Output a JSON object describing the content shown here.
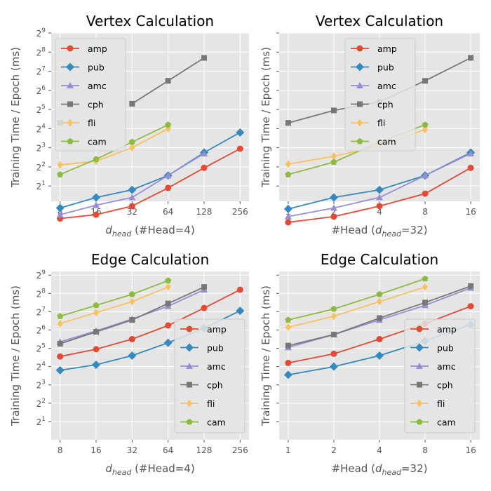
{
  "figure": {
    "background": "#ffffff",
    "panel_background": "#e5e5e5",
    "grid_color": "#ffffff",
    "text_color": "#555555"
  },
  "series_styles": {
    "amp": {
      "color": "#e24a33",
      "marker": "circle"
    },
    "pub": {
      "color": "#348abd",
      "marker": "diamond"
    },
    "amc": {
      "color": "#988ed5",
      "marker": "triangle"
    },
    "cph": {
      "color": "#777777",
      "marker": "square"
    },
    "fli": {
      "color": "#fbc15e",
      "marker": "thin-diamond"
    },
    "cam": {
      "color": "#8eba42",
      "marker": "pentagon"
    }
  },
  "chart_data": [
    {
      "type": "line",
      "title": "Vertex Calculation",
      "xlabel": "d_head (#Head=4)",
      "ylabel": "Training Time / Epoch (ms)",
      "x": [
        "8",
        "16",
        "32",
        "64",
        "128",
        "256"
      ],
      "yscale": "log2",
      "ylim": [
        0.2,
        9
      ],
      "ytick_labels": [
        "2^1",
        "2^2",
        "2^3",
        "2^4",
        "2^5",
        "2^6",
        "2^7",
        "2^8",
        "2^9"
      ],
      "yticks_shown": [
        1,
        2,
        3,
        4,
        5,
        6,
        7,
        8,
        9
      ],
      "show_ytick_labels": true,
      "legend_position": "upper-left",
      "grid": true,
      "series": [
        {
          "name": "amp",
          "values": [
            -0.7,
            -0.5,
            -0.05,
            0.9,
            1.95,
            2.95
          ]
        },
        {
          "name": "pub",
          "values": [
            -0.15,
            0.4,
            0.8,
            1.55,
            2.75,
            3.8
          ]
        },
        {
          "name": "amc",
          "values": [
            -0.5,
            0.0,
            0.4,
            1.55,
            2.7,
            null
          ]
        },
        {
          "name": "cph",
          "values": [
            4.3,
            null,
            5.3,
            6.5,
            7.7,
            null
          ]
        },
        {
          "name": "fli",
          "values": [
            2.1,
            2.3,
            3.0,
            4.0,
            null,
            null
          ]
        },
        {
          "name": "cam",
          "values": [
            1.6,
            2.4,
            3.3,
            4.2,
            null,
            null
          ]
        }
      ]
    },
    {
      "type": "line",
      "title": "Vertex Calculation",
      "xlabel": "#Head (d_head=32)",
      "ylabel": "Training Time / Epoch (ms)",
      "x": [
        "1",
        "2",
        "4",
        "8",
        "16"
      ],
      "yscale": "log2",
      "ylim": [
        0.2,
        9
      ],
      "ytick_labels": [],
      "yticks_shown": [
        1,
        2,
        3,
        4,
        5,
        6,
        7,
        8,
        9
      ],
      "show_ytick_labels": false,
      "legend_position": "upper-center",
      "grid": true,
      "series": [
        {
          "name": "amp",
          "values": [
            -0.9,
            -0.6,
            -0.05,
            0.6,
            1.95
          ]
        },
        {
          "name": "pub",
          "values": [
            -0.2,
            0.4,
            0.8,
            1.55,
            2.75
          ]
        },
        {
          "name": "amc",
          "values": [
            -0.6,
            -0.15,
            0.4,
            1.55,
            2.7
          ]
        },
        {
          "name": "cph",
          "values": [
            4.3,
            4.95,
            5.4,
            6.5,
            7.7
          ]
        },
        {
          "name": "fli",
          "values": [
            2.15,
            2.55,
            3.1,
            3.95,
            null
          ]
        },
        {
          "name": "cam",
          "values": [
            1.6,
            2.25,
            3.3,
            4.2,
            null
          ]
        }
      ]
    },
    {
      "type": "line",
      "title": "Edge Calculation",
      "xlabel": "d_head (#Head=4)",
      "ylabel": "Training Time / Epoch (ms)",
      "x": [
        "8",
        "16",
        "32",
        "64",
        "128",
        "256"
      ],
      "yscale": "log2",
      "ylim": [
        0,
        9.2
      ],
      "ytick_labels": [
        "2^1",
        "2^2",
        "2^3",
        "2^4",
        "2^5",
        "2^6",
        "2^7",
        "2^8",
        "2^9"
      ],
      "yticks_shown": [
        1,
        2,
        3,
        4,
        5,
        6,
        7,
        8,
        9
      ],
      "show_ytick_labels": true,
      "legend_position": "lower-right",
      "grid": true,
      "series": [
        {
          "name": "amp",
          "values": [
            4.55,
            4.95,
            5.5,
            6.25,
            7.2,
            8.2
          ]
        },
        {
          "name": "pub",
          "values": [
            3.8,
            4.1,
            4.6,
            5.3,
            6.1,
            7.05
          ]
        },
        {
          "name": "amc",
          "values": [
            5.35,
            5.95,
            6.6,
            7.3,
            8.2,
            null
          ]
        },
        {
          "name": "cph",
          "values": [
            5.25,
            5.9,
            6.55,
            7.45,
            8.35,
            null
          ]
        },
        {
          "name": "fli",
          "values": [
            6.35,
            6.95,
            7.55,
            8.35,
            null,
            null
          ]
        },
        {
          "name": "cam",
          "values": [
            6.75,
            7.35,
            7.95,
            8.7,
            null,
            null
          ]
        }
      ]
    },
    {
      "type": "line",
      "title": "Edge Calculation",
      "xlabel": "#Head (d_head=32)",
      "ylabel": "Training Time / Epoch (ms)",
      "x": [
        "1",
        "2",
        "4",
        "8",
        "16"
      ],
      "yscale": "log2",
      "ylim": [
        0,
        9.2
      ],
      "ytick_labels": [],
      "yticks_shown": [
        1,
        2,
        3,
        4,
        5,
        6,
        7,
        8,
        9
      ],
      "show_ytick_labels": false,
      "legend_position": "lower-right",
      "grid": true,
      "series": [
        {
          "name": "amp",
          "values": [
            4.2,
            4.7,
            5.5,
            6.35,
            7.3
          ]
        },
        {
          "name": "pub",
          "values": [
            3.55,
            4.0,
            4.6,
            5.4,
            6.3
          ]
        },
        {
          "name": "amc",
          "values": [
            5.05,
            5.75,
            6.55,
            7.35,
            8.3
          ]
        },
        {
          "name": "cph",
          "values": [
            5.15,
            5.75,
            6.65,
            7.5,
            8.4
          ]
        },
        {
          "name": "fli",
          "values": [
            6.15,
            6.75,
            7.55,
            8.35,
            null
          ]
        },
        {
          "name": "cam",
          "values": [
            6.55,
            7.15,
            7.95,
            8.8,
            null
          ]
        }
      ]
    }
  ]
}
